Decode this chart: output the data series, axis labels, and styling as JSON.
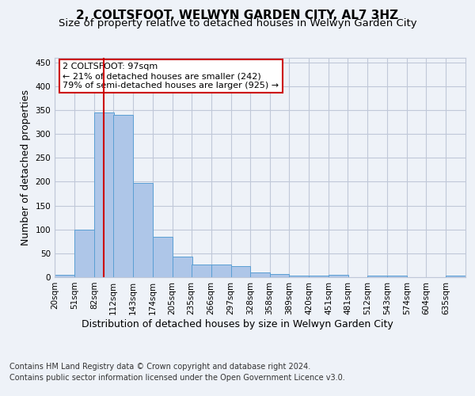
{
  "title": "2, COLTSFOOT, WELWYN GARDEN CITY, AL7 3HZ",
  "subtitle": "Size of property relative to detached houses in Welwyn Garden City",
  "xlabel": "Distribution of detached houses by size in Welwyn Garden City",
  "ylabel": "Number of detached properties",
  "bin_labels": [
    "20sqm",
    "51sqm",
    "82sqm",
    "112sqm",
    "143sqm",
    "174sqm",
    "205sqm",
    "235sqm",
    "266sqm",
    "297sqm",
    "328sqm",
    "358sqm",
    "389sqm",
    "420sqm",
    "451sqm",
    "481sqm",
    "512sqm",
    "543sqm",
    "574sqm",
    "604sqm",
    "635sqm"
  ],
  "bin_edges": [
    20,
    51,
    82,
    112,
    143,
    174,
    205,
    235,
    266,
    297,
    328,
    358,
    389,
    420,
    451,
    481,
    512,
    543,
    574,
    604,
    635
  ],
  "bar_heights": [
    5,
    100,
    345,
    340,
    197,
    85,
    43,
    27,
    27,
    24,
    10,
    6,
    4,
    3,
    5,
    0,
    3,
    3,
    0,
    0,
    3
  ],
  "bar_color": "#aec6e8",
  "bar_edge_color": "#5a9fd4",
  "property_size": 97,
  "annotation_text": "2 COLTSFOOT: 97sqm\n← 21% of detached houses are smaller (242)\n79% of semi-detached houses are larger (925) →",
  "annotation_box_color": "#ffffff",
  "annotation_box_edge_color": "#cc0000",
  "red_line_color": "#cc0000",
  "ylim": [
    0,
    460
  ],
  "yticks": [
    0,
    50,
    100,
    150,
    200,
    250,
    300,
    350,
    400,
    450
  ],
  "footer_line1": "Contains HM Land Registry data © Crown copyright and database right 2024.",
  "footer_line2": "Contains public sector information licensed under the Open Government Licence v3.0.",
  "background_color": "#eef2f8",
  "plot_background": "#eef2f8",
  "grid_color": "#c0c8d8",
  "title_fontsize": 11,
  "subtitle_fontsize": 9.5,
  "axis_label_fontsize": 9,
  "tick_fontsize": 7.5,
  "footer_fontsize": 7,
  "annotation_fontsize": 8
}
